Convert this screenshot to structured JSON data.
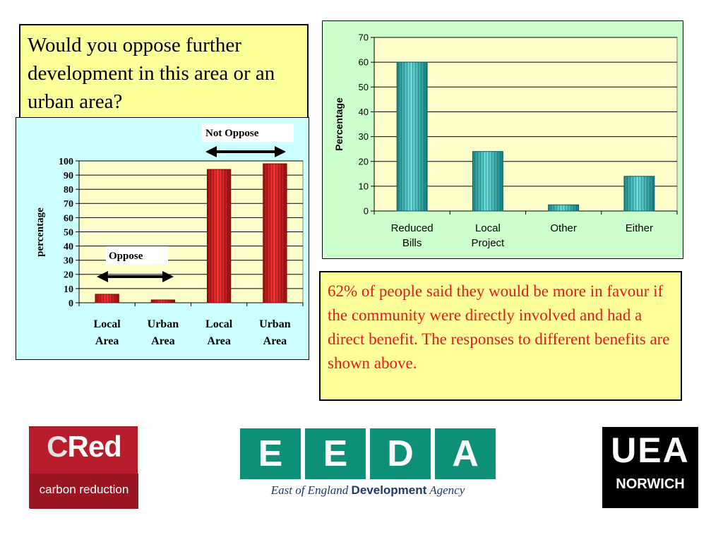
{
  "question": "Would you oppose further development in this area or an urban area?",
  "benefits_text": "62% of people said they would be more in favour if the community were directly involved and had a direct benefit.  The responses to different benefits are shown above.",
  "colors": {
    "oppose_bar": "#e8181c",
    "benefit_bar": "#2fb3b3",
    "yellow_fill": "#ffff99",
    "red_text": "#e8181c"
  },
  "chart_data": [
    {
      "type": "bar",
      "categories": [
        "Local Area",
        "Urban Area",
        "Local Area",
        "Urban Area"
      ],
      "values": [
        6,
        2,
        94,
        98
      ],
      "ylabel": "percentage",
      "ylim": [
        0,
        100
      ],
      "yticks": [
        0,
        10,
        20,
        30,
        40,
        50,
        60,
        70,
        80,
        90,
        100
      ],
      "grid": true,
      "annotations": [
        "Oppose",
        "Not Oppose"
      ]
    },
    {
      "type": "bar",
      "categories": [
        "Reduced Bills",
        "Local Project",
        "Other",
        "Either"
      ],
      "values": [
        60,
        24,
        2.5,
        14
      ],
      "ylabel": "Percentage",
      "ylim": [
        0,
        70
      ],
      "yticks": [
        0,
        10,
        20,
        30,
        40,
        50,
        60,
        70
      ],
      "grid": true
    }
  ],
  "logos": {
    "cred": {
      "c": "C",
      "red": "Red",
      "sub": "carbon reduction",
      "icon": "cred-logo"
    },
    "eeda": {
      "letters": [
        "E",
        "E",
        "D",
        "A"
      ],
      "tag_pre": "East of England ",
      "tag_bold": "Development",
      "tag_post": " Agency",
      "icon": "eeda-logo"
    },
    "uea": {
      "word": "UEA",
      "city": "NORWICH",
      "icon": "uea-logo"
    }
  }
}
